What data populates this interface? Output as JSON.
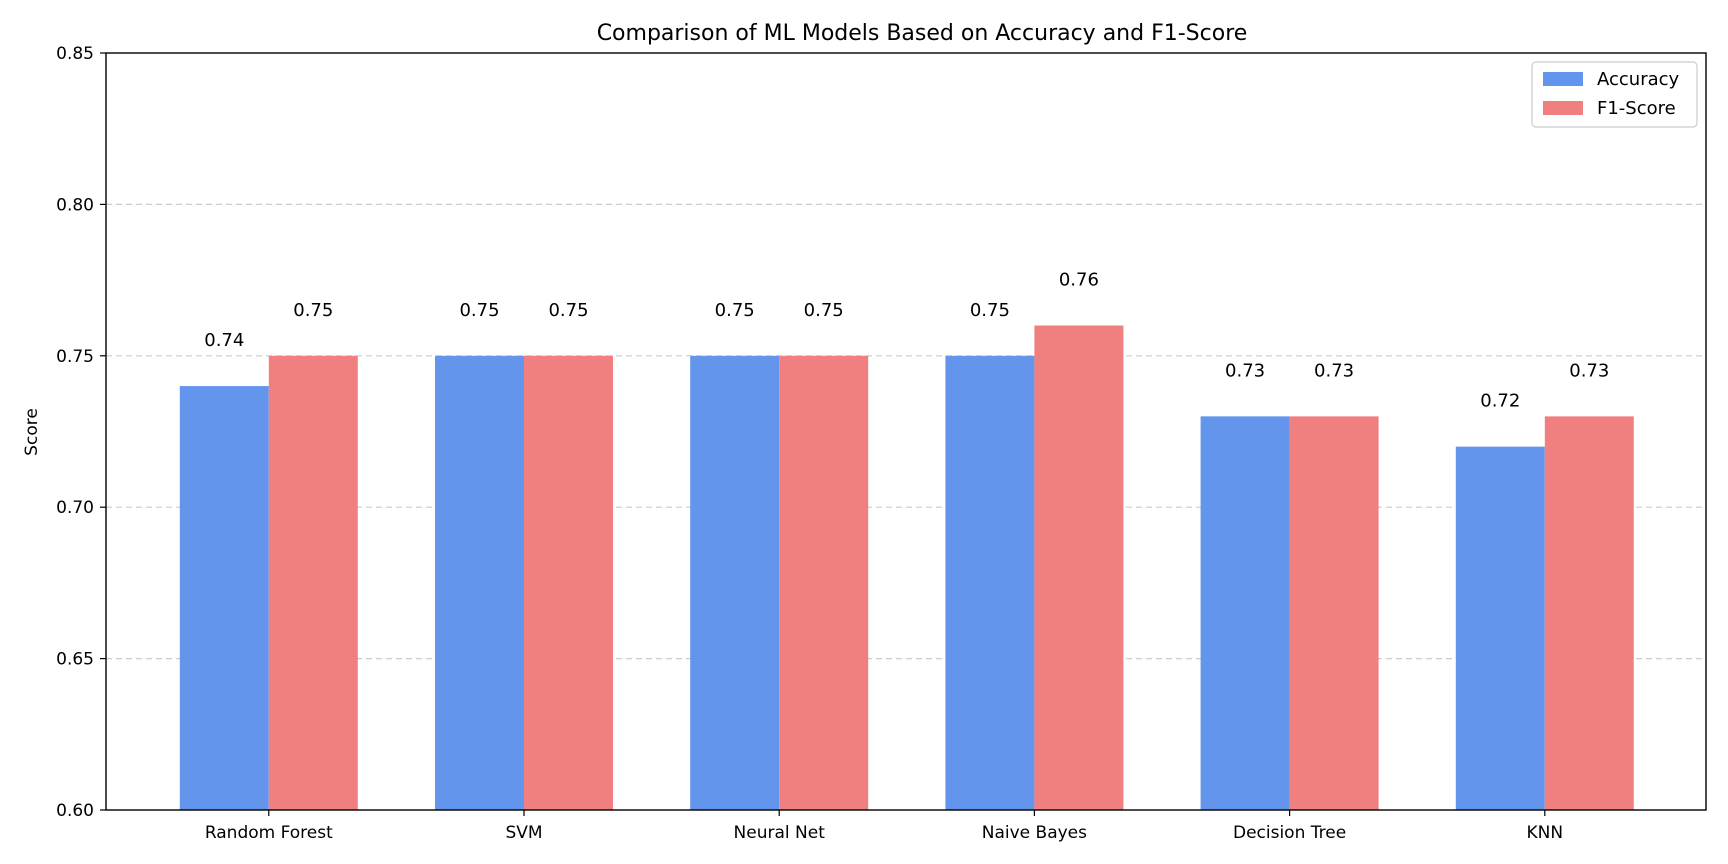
{
  "chart_data": {
    "type": "bar",
    "title": "Comparison of ML Models Based on Accuracy and F1-Score",
    "xlabel": "",
    "ylabel": "Score",
    "ylim": [
      0.6,
      0.85
    ],
    "yticks": [
      "0.60",
      "0.65",
      "0.70",
      "0.75",
      "0.80",
      "0.85"
    ],
    "grid": "horizontal-dashed",
    "legend_position": "top-right",
    "categories": [
      "Random Forest",
      "SVM",
      "Neural Net",
      "Naive Bayes",
      "Decision Tree",
      "KNN"
    ],
    "series": [
      {
        "name": "Accuracy",
        "color": "#6495ED",
        "values": [
          0.74,
          0.75,
          0.75,
          0.75,
          0.73,
          0.72
        ],
        "labels": [
          "0.74",
          "0.75",
          "0.75",
          "0.75",
          "0.73",
          "0.72"
        ]
      },
      {
        "name": "F1-Score",
        "color": "#F08080",
        "values": [
          0.75,
          0.75,
          0.75,
          0.76,
          0.73,
          0.73
        ],
        "labels": [
          "0.75",
          "0.75",
          "0.75",
          "0.76",
          "0.73",
          "0.73"
        ]
      }
    ]
  }
}
